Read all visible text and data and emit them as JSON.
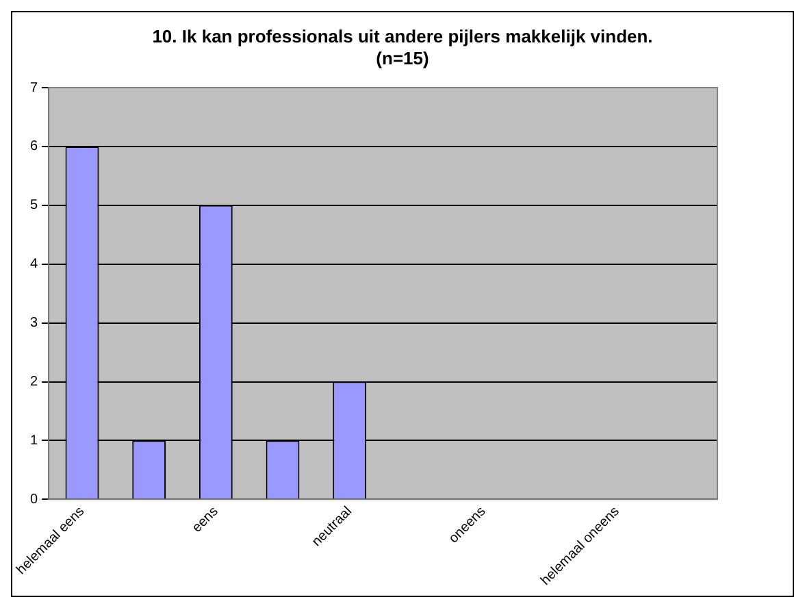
{
  "chart_data": {
    "type": "bar",
    "title": "10. Ik kan professionals uit andere pijlers makkelijk vinden. (n=15)",
    "categories": [
      "helemaal eens",
      null,
      "eens",
      null,
      "neutraal",
      null,
      "oneens",
      null,
      "helemaal oneens",
      null
    ],
    "values": [
      6,
      1,
      5,
      1,
      2,
      0,
      0,
      0,
      0,
      0
    ],
    "color": "#9999ff",
    "ylim": [
      0,
      7
    ],
    "yticks": [
      0,
      1,
      2,
      3,
      4,
      5,
      6,
      7
    ],
    "grid": "y",
    "legend": false
  }
}
